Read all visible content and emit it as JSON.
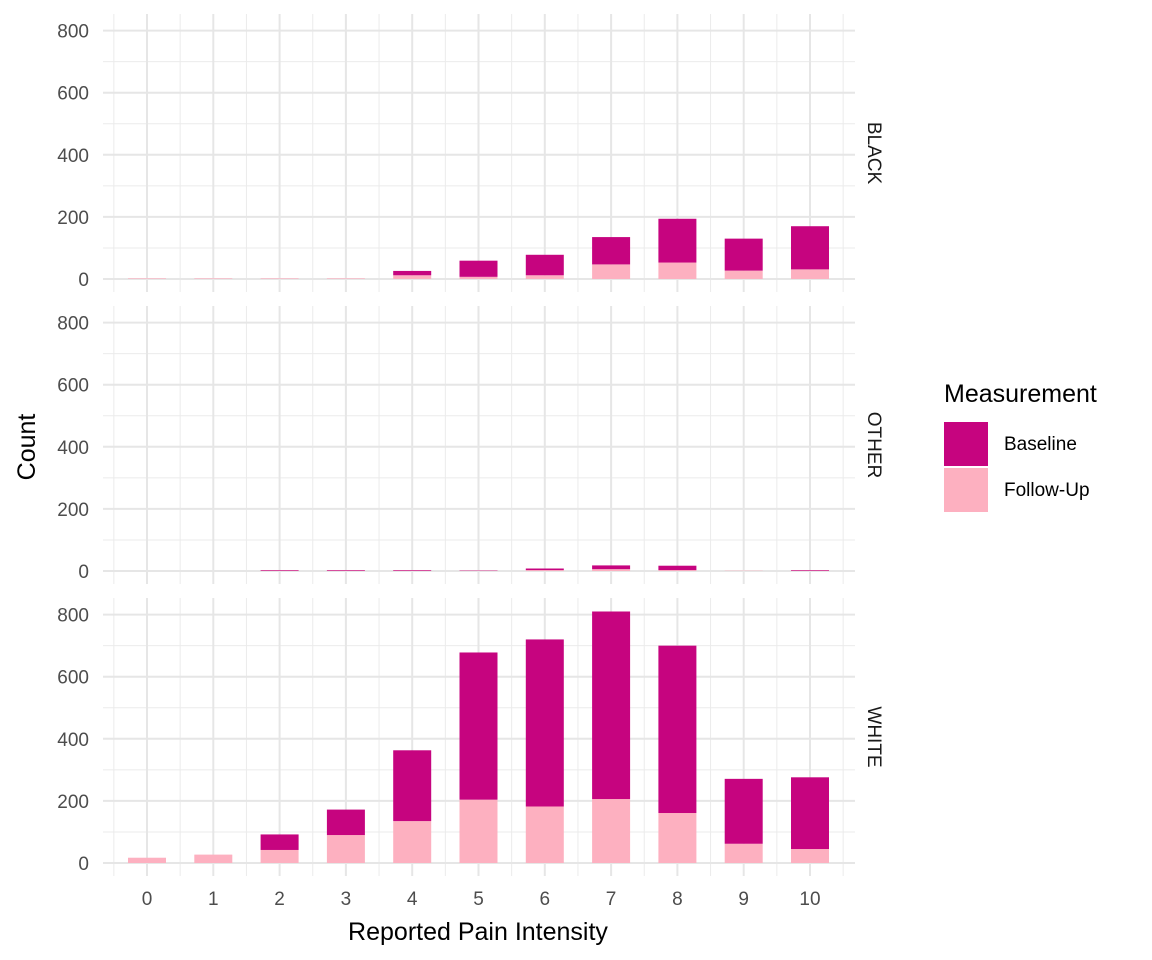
{
  "chart_data": {
    "type": "bar",
    "stacked": true,
    "xlabel": "Reported Pain Intensity",
    "ylabel": "Count",
    "categories": [
      "0",
      "1",
      "2",
      "3",
      "4",
      "5",
      "6",
      "7",
      "8",
      "9",
      "10"
    ],
    "yticks": [
      "0",
      "200",
      "400",
      "600",
      "800"
    ],
    "ylim": [
      0,
      850
    ],
    "grid": true,
    "legend": {
      "title": "Measurement",
      "position": "right",
      "entries": [
        {
          "name": "Baseline",
          "color": "#C6047F"
        },
        {
          "name": "Follow-Up",
          "color": "#FDB0C0"
        }
      ]
    },
    "facets": [
      {
        "label": "BLACK",
        "series": [
          {
            "name": "Follow-Up",
            "values": [
              2,
              2,
              2,
              2,
              12,
              7,
              12,
              47,
              53,
              27,
              31
            ]
          },
          {
            "name": "Baseline",
            "values": [
              0,
              0,
              0,
              0,
              14,
              52,
              66,
              88,
              141,
              103,
              139
            ]
          }
        ]
      },
      {
        "label": "OTHER",
        "series": [
          {
            "name": "Follow-Up",
            "values": [
              0,
              0,
              1,
              1,
              1,
              1,
              3,
              6,
              3,
              1,
              1
            ]
          },
          {
            "name": "Baseline",
            "values": [
              0,
              0,
              2,
              2,
              2,
              1,
              5,
              12,
              14,
              0,
              2
            ]
          }
        ]
      },
      {
        "label": "WHITE",
        "series": [
          {
            "name": "Follow-Up",
            "values": [
              17,
              27,
              42,
              90,
              135,
              204,
              182,
              206,
              161,
              62,
              45
            ]
          },
          {
            "name": "Baseline",
            "values": [
              0,
              0,
              50,
              82,
              228,
              474,
              538,
              604,
              539,
              209,
              231
            ]
          }
        ]
      }
    ]
  }
}
